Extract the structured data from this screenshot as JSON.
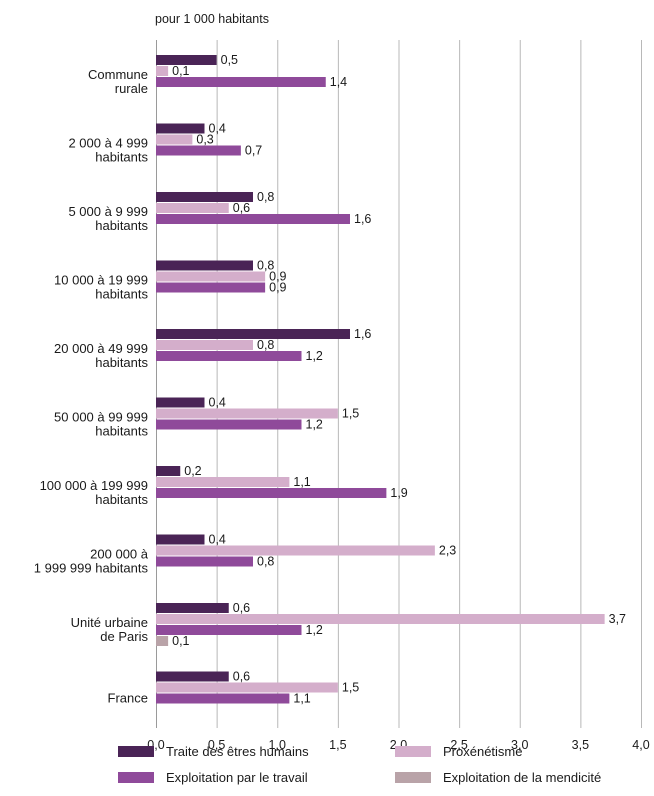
{
  "chart_data": {
    "type": "bar",
    "orientation": "horizontal",
    "unit_label": "pour 1 000 habitants",
    "categories": [
      [
        "Commune",
        "rurale"
      ],
      [
        "2 000 à 4 999",
        "habitants"
      ],
      [
        "5 000 à 9 999",
        "habitants"
      ],
      [
        "10 000 à 19 999",
        "habitants"
      ],
      [
        "20 000 à 49 999",
        "habitants"
      ],
      [
        "50 000 à 99 999",
        "habitants"
      ],
      [
        "100 000 à 199 999",
        "habitants"
      ],
      [
        "200 000 à",
        "1 999 999 habitants"
      ],
      [
        "Unité urbaine",
        "de Paris"
      ],
      [
        "France"
      ]
    ],
    "series": [
      {
        "name": "Traite des êtres humains",
        "color": "#4a2456",
        "values": [
          0.5,
          0.4,
          0.8,
          0.8,
          1.6,
          0.4,
          0.2,
          0.4,
          0.6,
          0.6
        ],
        "labels": [
          "0,5",
          "0,4",
          "0,8",
          "0,8",
          "1,6",
          "0,4",
          "0,2",
          "0,4",
          "0,6",
          "0,6"
        ]
      },
      {
        "name": "Proxénétisme",
        "color": "#d4aecb",
        "values": [
          0.1,
          0.3,
          0.6,
          0.9,
          0.8,
          1.5,
          1.1,
          2.3,
          3.7,
          1.5
        ],
        "labels": [
          "0,1",
          "0,3",
          "0,6",
          "0,9",
          "0,8",
          "1,5",
          "1,1",
          "2,3",
          "3,7",
          "1,5"
        ]
      },
      {
        "name": "Exploitation par le travail",
        "color": "#8f4a9a",
        "values": [
          1.4,
          0.7,
          1.6,
          0.9,
          1.2,
          1.2,
          1.9,
          0.8,
          1.2,
          1.1
        ],
        "labels": [
          "1,4",
          "0,7",
          "1,6",
          "0,9",
          "1,2",
          "1,2",
          "1,9",
          "0,8",
          "1,2",
          "1,1"
        ]
      },
      {
        "name": "Exploitation de la mendicité",
        "color": "#b9a3a8",
        "values": [
          0,
          0,
          0,
          0,
          0,
          0,
          0,
          0,
          0.1,
          0
        ],
        "labels": [
          "",
          "",
          "",
          "",
          "",
          "",
          "",
          "",
          "0,1",
          ""
        ]
      }
    ],
    "xlim": [
      0,
      4
    ],
    "xticks": [
      0,
      0.5,
      1,
      1.5,
      2,
      2.5,
      3,
      3.5,
      4
    ],
    "xtick_labels": [
      "0,0",
      "0,5",
      "1,0",
      "1,5",
      "2,0",
      "2,5",
      "3,0",
      "3,5",
      "4,0"
    ],
    "grid": true,
    "legend": {
      "position": "bottom",
      "order": [
        0,
        1,
        2,
        3
      ]
    }
  }
}
